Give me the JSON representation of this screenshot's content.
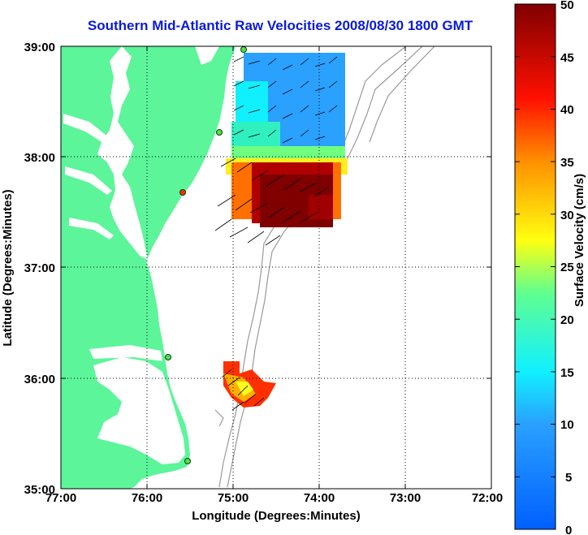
{
  "title": "Southern Mid-Atlantic Raw Velocities 2008/08/30 1800 GMT",
  "xlabel": "Longitude (Degrees:Minutes)",
  "ylabel": "Latitude (Degrees:Minutes)",
  "colorbar_label": "Surface Velocity (cm/s)",
  "x_ticks": [
    "77:00",
    "76:00",
    "75:00",
    "74:00",
    "73:00",
    "72:00"
  ],
  "y_ticks": [
    "39:00",
    "38:00",
    "37:00",
    "36:00",
    "35:00"
  ],
  "colorbar_ticks": [
    "50",
    "45",
    "40",
    "35",
    "30",
    "25",
    "20",
    "15",
    "10",
    "5",
    "0"
  ],
  "colors": {
    "land": "#5cf59a",
    "water": "#ffffff",
    "bathymetry": "#9a9a9a",
    "title": "#0b1bd6",
    "grid": "#000000"
  },
  "chart_data": {
    "type": "heatmap",
    "xlim": [
      -77,
      -72
    ],
    "ylim": [
      35,
      39
    ],
    "colorbar_range": [
      0,
      50
    ],
    "grid": true
  }
}
